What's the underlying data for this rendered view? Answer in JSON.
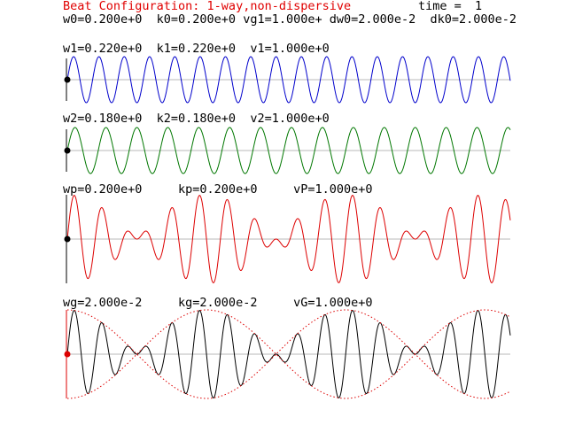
{
  "header": {
    "title": "Beat Configuration: 1-way,non-dispersive",
    "time_label": "time =",
    "time_value": "1",
    "params_line": "w0=0.200e+0  k0=0.200e+0 vg1=1.000e+ dw0=2.000e-2  dk0=2.000e-2"
  },
  "panels": [
    {
      "id": "wave1",
      "label": "w1=0.220e+0  k1=0.220e+0  v1=1.000e+0",
      "color": "#0000cc",
      "marker_color": "#000000",
      "k": 0.22,
      "amplitude": 1.0,
      "kind": "wave"
    },
    {
      "id": "wave2",
      "label": "w2=0.180e+0  k2=0.180e+0  v2=1.000e+0",
      "color": "#007700",
      "marker_color": "#000000",
      "k": 0.18,
      "amplitude": 1.0,
      "kind": "wave"
    },
    {
      "id": "phase",
      "label": "wp=0.200e+0     kp=0.200e+0     vP=1.000e+0",
      "color": "#dd0000",
      "marker_color": "#000000",
      "k1": 0.22,
      "k2": 0.18,
      "amplitude": 1.0,
      "kind": "sum"
    },
    {
      "id": "group",
      "label": "wg=2.000e-2     kg=2.000e-2     vG=1.000e+0",
      "color": "#000000",
      "envelope_color": "#dd0000",
      "marker_color": "#dd0000",
      "k1": 0.22,
      "k2": 0.18,
      "amplitude": 1.0,
      "kind": "sum_envelope"
    }
  ]
}
